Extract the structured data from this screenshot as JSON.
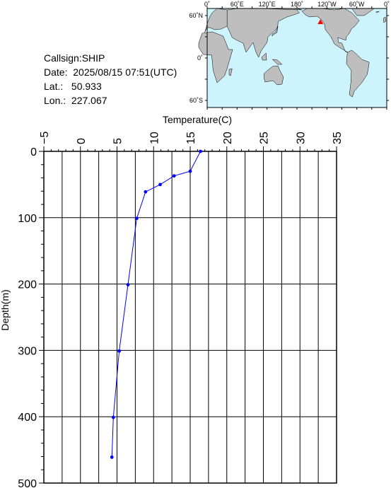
{
  "info": {
    "callsign": "Callsign:SHIP",
    "date": "Date:  2025/08/15 07:51(UTC)",
    "lat": "Lat.:   50.933",
    "lon": "Lon.:  227.067"
  },
  "map": {
    "top_lon_labels": [
      "0˚",
      "60˚E",
      "120˚E",
      "180˚",
      "120˚W",
      "60˚W",
      "0˚"
    ],
    "lat_labels": [
      "60˚N",
      "0˚",
      "60˚S"
    ],
    "ocean_color": "#cdf4fd",
    "land_color": "#bebebe",
    "marker_color": "#ff0000",
    "marker_lon": 227.067,
    "marker_lat": 50.933
  },
  "chart_data": {
    "type": "line",
    "xlabel": "Temperature(C)",
    "ylabel": "Depth(m)",
    "xlim": [
      -5,
      35
    ],
    "ylim": [
      0,
      500
    ],
    "x_ticks": [
      "−5",
      "0",
      "5",
      "10",
      "15",
      "20",
      "25",
      "30",
      "35"
    ],
    "y_ticks": [
      "0",
      "100",
      "200",
      "300",
      "400",
      "500"
    ],
    "line_color": "#0000ff",
    "grid": true,
    "series": [
      {
        "points": [
          {
            "t": 16.4,
            "d": 0
          },
          {
            "t": 15.0,
            "d": 30
          },
          {
            "t": 12.8,
            "d": 37
          },
          {
            "t": 10.9,
            "d": 50
          },
          {
            "t": 8.9,
            "d": 61
          },
          {
            "t": 7.7,
            "d": 101
          },
          {
            "t": 6.5,
            "d": 201
          },
          {
            "t": 5.3,
            "d": 301
          },
          {
            "t": 4.5,
            "d": 401
          },
          {
            "t": 4.3,
            "d": 461
          }
        ]
      }
    ]
  }
}
